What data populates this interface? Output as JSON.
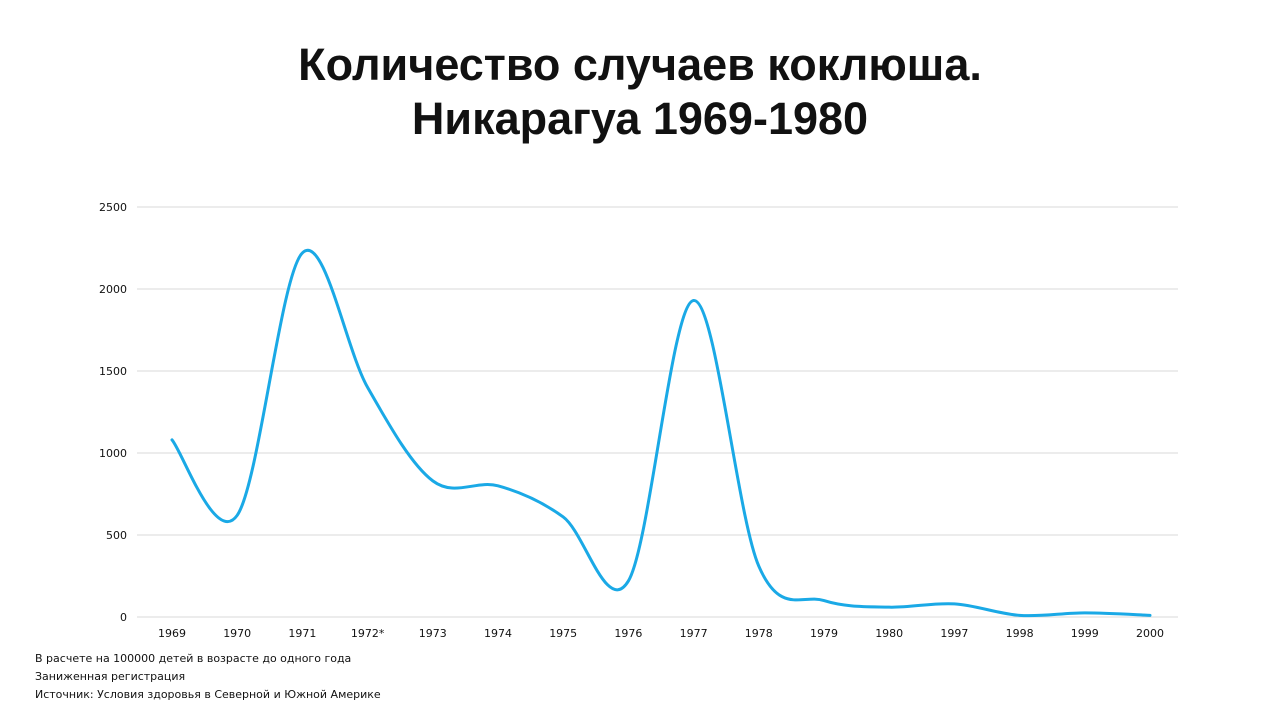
{
  "title": {
    "line1": "Количество случаев коклюша.",
    "line2": "Никарагуа 1969-1980"
  },
  "notes": [
    "В расчете на 100000  детей в возрасте до одного года",
    "Заниженная регистрация",
    "Источник:  Условия  здоровья в Северной и Южной Америке"
  ],
  "chart_data": {
    "type": "line",
    "title": "Количество случаев коклюша. Никарагуа 1969-1980",
    "xlabel": "",
    "ylabel": "",
    "categories": [
      "1969",
      "1970",
      "1971",
      "1972*",
      "1973",
      "1974",
      "1975",
      "1976",
      "1977",
      "1978",
      "1979",
      "1980",
      "1997",
      "1998",
      "1999",
      "2000"
    ],
    "series": [
      {
        "values": [
          1080,
          620,
          2220,
          1400,
          830,
          800,
          610,
          220,
          1930,
          310,
          100,
          60,
          80,
          10,
          25,
          10
        ]
      }
    ],
    "ylim": [
      0,
      2500
    ],
    "yticks": [
      0,
      500,
      1000,
      1500,
      2000,
      2500
    ],
    "grid": true,
    "legend": "none",
    "line_color": "#1aa9e6",
    "grid_color": "#d9d9d9",
    "text_color": "#111111"
  }
}
